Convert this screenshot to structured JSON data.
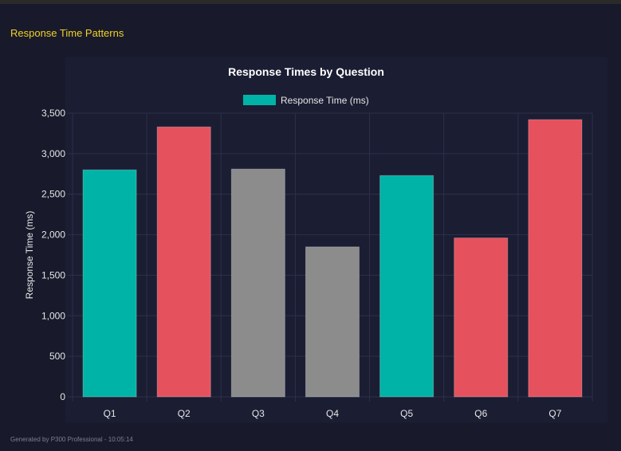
{
  "section_title": "Response Time Patterns",
  "footer": "Generated by P300 Professional - 10:05:14",
  "chart_data": {
    "type": "bar",
    "title": "Response Times by Question",
    "xlabel": "",
    "ylabel": "Response Time (ms)",
    "legend": {
      "position": "top",
      "entries": [
        {
          "name": "Response Time (ms)",
          "color": "#00b3a7"
        }
      ]
    },
    "categories": [
      "Q1",
      "Q2",
      "Q3",
      "Q4",
      "Q5",
      "Q6",
      "Q7"
    ],
    "series": [
      {
        "name": "Response Time (ms)",
        "values": [
          2800,
          3330,
          2810,
          1850,
          2730,
          1960,
          3420
        ]
      }
    ],
    "bar_colors": [
      "#00b3a7",
      "#e5515d",
      "#8c8c8c",
      "#8c8c8c",
      "#00b3a7",
      "#e5515d",
      "#e5515d"
    ],
    "ylim": [
      0,
      3500
    ],
    "yticks": [
      0,
      500,
      1000,
      1500,
      2000,
      2500,
      3000,
      3500
    ],
    "ytick_labels": [
      "0",
      "500",
      "1,000",
      "1,500",
      "2,000",
      "2,500",
      "3,000",
      "3,500"
    ],
    "grid": true
  }
}
